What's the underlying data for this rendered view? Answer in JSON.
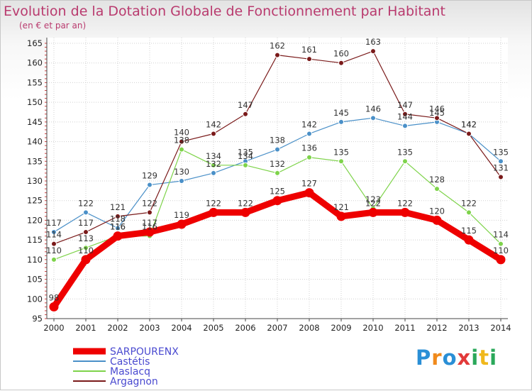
{
  "title": "Evolution de la Dotation Globale de Fonctionnement par Habitant",
  "subtitle": "(en € et par an)",
  "logo": {
    "letters": [
      "P",
      "r",
      "o",
      "x",
      "i",
      "t",
      "i"
    ],
    "colors": [
      "#2a8fd6",
      "#f08a1c",
      "#2a8fd6",
      "#e23a3a",
      "#2aa85a",
      "#f0b81c",
      "#2aa85a"
    ]
  },
  "chart_data": {
    "type": "line",
    "x": [
      2000,
      2001,
      2002,
      2003,
      2004,
      2005,
      2006,
      2007,
      2008,
      2009,
      2010,
      2011,
      2012,
      2013,
      2014
    ],
    "ylim": [
      95,
      165
    ],
    "yticks": [
      95,
      100,
      105,
      110,
      115,
      120,
      125,
      130,
      135,
      140,
      145,
      150,
      155,
      160,
      165
    ],
    "grid": true,
    "legend": "bottom-left",
    "series": [
      {
        "name": "SARPOURENX",
        "color": "#ee0000",
        "values": [
          98,
          110,
          116,
          117,
          119,
          122,
          122,
          125,
          127,
          121,
          122,
          122,
          120,
          115,
          110
        ]
      },
      {
        "name": "Castétis",
        "color": "#4a90c8",
        "values": [
          117,
          122,
          118,
          129,
          130,
          132,
          135,
          138,
          142,
          145,
          146,
          144,
          145,
          142,
          135
        ]
      },
      {
        "name": "Maslacq",
        "color": "#7ed34a",
        "values": [
          110,
          113,
          116,
          116,
          138,
          134,
          134,
          132,
          136,
          135,
          123,
          135,
          128,
          122,
          114
        ]
      },
      {
        "name": "Argagnon",
        "color": "#7a1a1a",
        "values": [
          114,
          117,
          121,
          122,
          140,
          142,
          147,
          162,
          161,
          160,
          163,
          147,
          146,
          142,
          131
        ]
      }
    ]
  }
}
